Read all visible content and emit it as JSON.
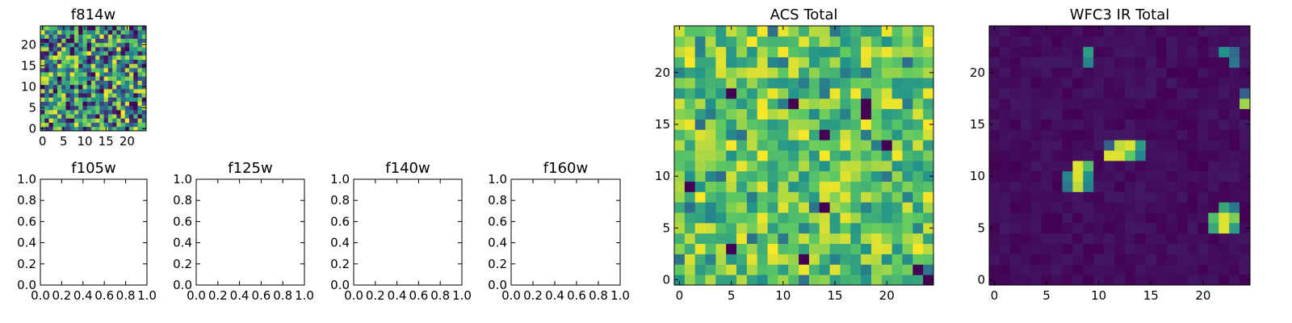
{
  "figure": {
    "background": "#ffffff",
    "colormap": "viridis",
    "colormap_stops": [
      "#440154",
      "#3b528b",
      "#21918c",
      "#5ec962",
      "#fde725"
    ]
  },
  "chart_data": [
    {
      "id": "f814w",
      "type": "heatmap",
      "title": "f814w",
      "grid_size": 25,
      "xlim": [
        -0.5,
        24.5
      ],
      "ylim": [
        -0.5,
        24.5
      ],
      "xticks": [
        0,
        5,
        10,
        15,
        20
      ],
      "yticks": [
        0,
        5,
        10,
        15,
        20
      ],
      "xtick_labels": [
        "0",
        "5",
        "10",
        "15",
        "20"
      ],
      "ytick_labels": [
        "0",
        "5",
        "10",
        "15",
        "20"
      ],
      "value_range": [
        0,
        1
      ],
      "pattern": "uniform random noise (25x25 cells)",
      "seed": 814
    },
    {
      "id": "f105w",
      "type": "heatmap",
      "title": "f105w",
      "empty": true,
      "xlim": [
        0,
        1
      ],
      "ylim": [
        0,
        1
      ],
      "xticks": [
        0,
        0.2,
        0.4,
        0.6,
        0.8,
        1.0
      ],
      "yticks": [
        0,
        0.2,
        0.4,
        0.6,
        0.8,
        1.0
      ],
      "xtick_labels": [
        "0.0",
        "0.2",
        "0.4",
        "0.6",
        "0.8",
        "1.0"
      ],
      "ytick_labels": [
        "0.0",
        "0.2",
        "0.4",
        "0.6",
        "0.8",
        "1.0"
      ]
    },
    {
      "id": "f125w",
      "type": "heatmap",
      "title": "f125w",
      "empty": true,
      "xlim": [
        0,
        1
      ],
      "ylim": [
        0,
        1
      ],
      "xticks": [
        0,
        0.2,
        0.4,
        0.6,
        0.8,
        1.0
      ],
      "yticks": [
        0,
        0.2,
        0.4,
        0.6,
        0.8,
        1.0
      ],
      "xtick_labels": [
        "0.0",
        "0.2",
        "0.4",
        "0.6",
        "0.8",
        "1.0"
      ],
      "ytick_labels": [
        "0.0",
        "0.2",
        "0.4",
        "0.6",
        "0.8",
        "1.0"
      ]
    },
    {
      "id": "f140w",
      "type": "heatmap",
      "title": "f140w",
      "empty": true,
      "xlim": [
        0,
        1
      ],
      "ylim": [
        0,
        1
      ],
      "xticks": [
        0,
        0.2,
        0.4,
        0.6,
        0.8,
        1.0
      ],
      "yticks": [
        0,
        0.2,
        0.4,
        0.6,
        0.8,
        1.0
      ],
      "xtick_labels": [
        "0.0",
        "0.2",
        "0.4",
        "0.6",
        "0.8",
        "1.0"
      ],
      "ytick_labels": [
        "0.0",
        "0.2",
        "0.4",
        "0.6",
        "0.8",
        "1.0"
      ]
    },
    {
      "id": "f160w",
      "type": "heatmap",
      "title": "f160w",
      "empty": true,
      "xlim": [
        0,
        1
      ],
      "ylim": [
        0,
        1
      ],
      "xticks": [
        0,
        0.2,
        0.4,
        0.6,
        0.8,
        1.0
      ],
      "yticks": [
        0,
        0.2,
        0.4,
        0.6,
        0.8,
        1.0
      ],
      "xtick_labels": [
        "0.0",
        "0.2",
        "0.4",
        "0.6",
        "0.8",
        "1.0"
      ],
      "ytick_labels": [
        "0.0",
        "0.2",
        "0.4",
        "0.6",
        "0.8",
        "1.0"
      ]
    },
    {
      "id": "acs-total",
      "type": "heatmap",
      "title": "ACS Total",
      "grid_size": 25,
      "xlim": [
        -0.5,
        24.5
      ],
      "ylim": [
        -0.5,
        24.5
      ],
      "xticks": [
        0,
        5,
        10,
        15,
        20
      ],
      "yticks": [
        0,
        5,
        10,
        15,
        20
      ],
      "xtick_labels": [
        "0",
        "5",
        "10",
        "15",
        "20"
      ],
      "ytick_labels": [
        "0",
        "5",
        "10",
        "15",
        "20"
      ],
      "value_range": [
        0,
        1
      ],
      "pattern": "noise biased high (mostly green/yellow) with a few dark cells",
      "seed": 2024,
      "dark_cells": [
        [
          11,
          17
        ],
        [
          18,
          17
        ],
        [
          14,
          14
        ],
        [
          20,
          13
        ],
        [
          1,
          9
        ],
        [
          5,
          3
        ],
        [
          14,
          7
        ],
        [
          23,
          1
        ],
        [
          24,
          0
        ],
        [
          12,
          2
        ],
        [
          5,
          18
        ],
        [
          18,
          16
        ]
      ]
    },
    {
      "id": "wfc3-ir-total",
      "type": "heatmap",
      "title": "WFC3 IR Total",
      "grid_size": 25,
      "xlim": [
        -0.5,
        24.5
      ],
      "ylim": [
        -0.5,
        24.5
      ],
      "xticks": [
        0,
        5,
        10,
        15,
        20
      ],
      "yticks": [
        0,
        5,
        10,
        15,
        20
      ],
      "xtick_labels": [
        "0",
        "5",
        "10",
        "15",
        "20"
      ],
      "ytick_labels": [
        "0",
        "5",
        "10",
        "15",
        "20"
      ],
      "value_range": [
        0,
        1
      ],
      "pattern": "dark background with discrete bright sources",
      "background_level": [
        0.0,
        0.07
      ],
      "sources": [
        {
          "x": 9,
          "y": 22,
          "v": 0.55
        },
        {
          "x": 9,
          "y": 21,
          "v": 0.45
        },
        {
          "x": 22,
          "y": 22,
          "v": 0.5
        },
        {
          "x": 23,
          "y": 22,
          "v": 0.35
        },
        {
          "x": 23,
          "y": 21,
          "v": 0.4
        },
        {
          "x": 24,
          "y": 17,
          "v": 0.85
        },
        {
          "x": 24,
          "y": 18,
          "v": 0.3
        },
        {
          "x": 11,
          "y": 12,
          "v": 0.95
        },
        {
          "x": 12,
          "y": 12,
          "v": 0.95
        },
        {
          "x": 12,
          "y": 13,
          "v": 0.9
        },
        {
          "x": 13,
          "y": 13,
          "v": 0.95
        },
        {
          "x": 13,
          "y": 12,
          "v": 0.75
        },
        {
          "x": 14,
          "y": 13,
          "v": 0.55
        },
        {
          "x": 14,
          "y": 12,
          "v": 0.45
        },
        {
          "x": 11,
          "y": 13,
          "v": 0.3
        },
        {
          "x": 8,
          "y": 11,
          "v": 0.95
        },
        {
          "x": 8,
          "y": 10,
          "v": 0.95
        },
        {
          "x": 8,
          "y": 9,
          "v": 0.9
        },
        {
          "x": 9,
          "y": 11,
          "v": 0.7
        },
        {
          "x": 9,
          "y": 10,
          "v": 0.5
        },
        {
          "x": 9,
          "y": 9,
          "v": 0.45
        },
        {
          "x": 7,
          "y": 10,
          "v": 0.45
        },
        {
          "x": 7,
          "y": 9,
          "v": 0.4
        },
        {
          "x": 22,
          "y": 7,
          "v": 0.6
        },
        {
          "x": 22,
          "y": 6,
          "v": 0.95
        },
        {
          "x": 22,
          "y": 5,
          "v": 0.95
        },
        {
          "x": 23,
          "y": 6,
          "v": 0.8
        },
        {
          "x": 23,
          "y": 5,
          "v": 0.55
        },
        {
          "x": 21,
          "y": 6,
          "v": 0.7
        },
        {
          "x": 21,
          "y": 5,
          "v": 0.6
        },
        {
          "x": 23,
          "y": 7,
          "v": 0.4
        }
      ],
      "seed": 77
    }
  ]
}
